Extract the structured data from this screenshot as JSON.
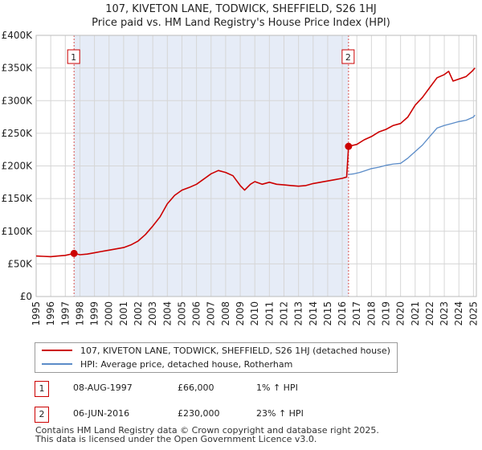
{
  "chart_data": {
    "type": "line",
    "title": "107, KIVETON LANE, TODWICK, SHEFFIELD, S26 1HJ",
    "subtitle": "Price paid vs. HM Land Registry's House Price Index (HPI)",
    "xlim": [
      1995.0,
      2025.2
    ],
    "ylim": [
      0,
      400000
    ],
    "x_ticks": [
      "1995",
      "1996",
      "1997",
      "1998",
      "1999",
      "2000",
      "2001",
      "2002",
      "2003",
      "2004",
      "2005",
      "2006",
      "2007",
      "2008",
      "2009",
      "2010",
      "2011",
      "2012",
      "2013",
      "2014",
      "2015",
      "2016",
      "2017",
      "2018",
      "2019",
      "2020",
      "2021",
      "2022",
      "2023",
      "2024",
      "2025"
    ],
    "y_ticks": [
      {
        "value": 0,
        "label": "£0"
      },
      {
        "value": 50000,
        "label": "£50K"
      },
      {
        "value": 100000,
        "label": "£100K"
      },
      {
        "value": 150000,
        "label": "£150K"
      },
      {
        "value": 200000,
        "label": "£200K"
      },
      {
        "value": 250000,
        "label": "£250K"
      },
      {
        "value": 300000,
        "label": "£300K"
      },
      {
        "value": 350000,
        "label": "£350K"
      },
      {
        "value": 400000,
        "label": "£400K"
      }
    ],
    "grid": true,
    "shaded_period": [
      1997.6,
      2016.43
    ],
    "series": [
      {
        "name": "107, KIVETON LANE, TODWICK, SHEFFIELD, S26 1HJ (detached house)",
        "color": "#cc0000",
        "points": [
          [
            1995.0,
            62000
          ],
          [
            1995.5,
            61500
          ],
          [
            1996.0,
            61000
          ],
          [
            1996.5,
            62000
          ],
          [
            1997.0,
            63000
          ],
          [
            1997.6,
            66000
          ],
          [
            1998.0,
            64000
          ],
          [
            1998.5,
            65000
          ],
          [
            1999.0,
            67000
          ],
          [
            1999.5,
            69000
          ],
          [
            2000.0,
            71000
          ],
          [
            2000.5,
            73000
          ],
          [
            2001.0,
            75000
          ],
          [
            2001.5,
            79000
          ],
          [
            2002.0,
            85000
          ],
          [
            2002.5,
            95000
          ],
          [
            2003.0,
            108000
          ],
          [
            2003.5,
            122000
          ],
          [
            2004.0,
            142000
          ],
          [
            2004.5,
            155000
          ],
          [
            2005.0,
            163000
          ],
          [
            2005.5,
            167000
          ],
          [
            2006.0,
            172000
          ],
          [
            2006.5,
            180000
          ],
          [
            2007.0,
            188000
          ],
          [
            2007.5,
            193000
          ],
          [
            2008.0,
            190000
          ],
          [
            2008.5,
            185000
          ],
          [
            2009.0,
            170000
          ],
          [
            2009.3,
            163000
          ],
          [
            2009.7,
            172000
          ],
          [
            2010.0,
            176000
          ],
          [
            2010.5,
            172000
          ],
          [
            2011.0,
            175000
          ],
          [
            2011.5,
            172000
          ],
          [
            2012.0,
            171000
          ],
          [
            2012.5,
            170000
          ],
          [
            2013.0,
            169000
          ],
          [
            2013.5,
            170000
          ],
          [
            2014.0,
            173000
          ],
          [
            2014.5,
            175000
          ],
          [
            2015.0,
            177000
          ],
          [
            2015.5,
            179000
          ],
          [
            2016.0,
            181000
          ],
          [
            2016.3,
            183000
          ],
          [
            2016.43,
            230000
          ],
          [
            2017.0,
            233000
          ],
          [
            2017.5,
            240000
          ],
          [
            2018.0,
            245000
          ],
          [
            2018.5,
            252000
          ],
          [
            2019.0,
            256000
          ],
          [
            2019.5,
            262000
          ],
          [
            2020.0,
            265000
          ],
          [
            2020.5,
            275000
          ],
          [
            2021.0,
            293000
          ],
          [
            2021.5,
            305000
          ],
          [
            2022.0,
            320000
          ],
          [
            2022.5,
            335000
          ],
          [
            2023.0,
            340000
          ],
          [
            2023.3,
            345000
          ],
          [
            2023.6,
            330000
          ],
          [
            2024.0,
            333000
          ],
          [
            2024.5,
            337000
          ],
          [
            2024.9,
            345000
          ],
          [
            2025.1,
            350000
          ]
        ]
      },
      {
        "name": "HPI: Average price, detached house, Rotherham",
        "color": "#5b8cc8",
        "points": [
          [
            2016.43,
            187000
          ],
          [
            2016.8,
            188000
          ],
          [
            2017.2,
            190000
          ],
          [
            2017.6,
            193000
          ],
          [
            2018.0,
            196000
          ],
          [
            2018.5,
            198000
          ],
          [
            2019.0,
            201000
          ],
          [
            2019.5,
            203000
          ],
          [
            2020.0,
            204000
          ],
          [
            2020.5,
            212000
          ],
          [
            2021.0,
            222000
          ],
          [
            2021.5,
            232000
          ],
          [
            2022.0,
            245000
          ],
          [
            2022.5,
            258000
          ],
          [
            2023.0,
            262000
          ],
          [
            2023.5,
            265000
          ],
          [
            2024.0,
            268000
          ],
          [
            2024.5,
            270000
          ],
          [
            2025.0,
            275000
          ],
          [
            2025.1,
            278000
          ]
        ]
      }
    ],
    "markers": [
      {
        "label": "1",
        "x": 1997.6,
        "y": 66000
      },
      {
        "label": "2",
        "x": 2016.43,
        "y": 230000
      }
    ],
    "legend": [
      {
        "label": "107, KIVETON LANE, TODWICK, SHEFFIELD, S26 1HJ (detached house)",
        "color": "#cc0000"
      },
      {
        "label": "HPI: Average price, detached house, Rotherham",
        "color": "#5b8cc8"
      }
    ]
  },
  "transactions": [
    {
      "num": "1",
      "date": "08-AUG-1997",
      "price": "£66,000",
      "hpi": "1% ↑ HPI"
    },
    {
      "num": "2",
      "date": "06-JUN-2016",
      "price": "£230,000",
      "hpi": "23% ↑ HPI"
    }
  ],
  "footer": {
    "line1": "Contains HM Land Registry data © Crown copyright and database right 2025.",
    "line2": "This data is licensed under the Open Government Licence v3.0."
  }
}
